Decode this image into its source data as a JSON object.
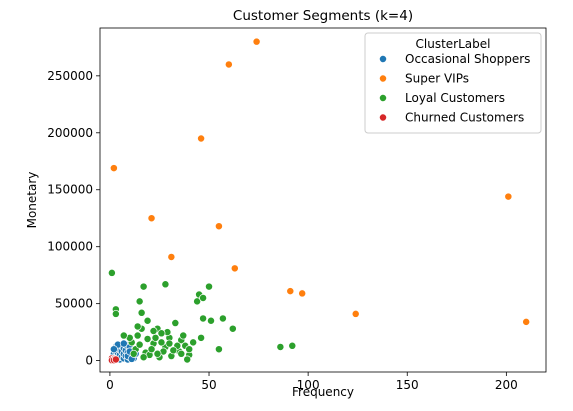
{
  "chart_data": {
    "type": "scatter",
    "title": "Customer Segments (k=4)",
    "xlabel": "Frequency",
    "ylabel": "Monetary",
    "xlim": [
      -5,
      220
    ],
    "ylim": [
      -10000,
      292000
    ],
    "xticks": [
      0,
      50,
      100,
      150,
      200
    ],
    "yticks": [
      0,
      50000,
      100000,
      150000,
      200000,
      250000
    ],
    "grid": false,
    "legend": {
      "title": "ClusterLabel",
      "placement": "top-right"
    },
    "series": [
      {
        "name": "Occasional Shoppers",
        "color": "#1f77b4",
        "points": [
          [
            1,
            1500
          ],
          [
            2,
            3000
          ],
          [
            2,
            6000
          ],
          [
            3,
            2000
          ],
          [
            3,
            8000
          ],
          [
            3,
            12000
          ],
          [
            4,
            4000
          ],
          [
            4,
            7000
          ],
          [
            5,
            1000
          ],
          [
            5,
            5000
          ],
          [
            5,
            10000
          ],
          [
            6,
            3000
          ],
          [
            6,
            8000
          ],
          [
            6,
            13000
          ],
          [
            7,
            2000
          ],
          [
            7,
            6000
          ],
          [
            7,
            11000
          ],
          [
            8,
            4000
          ],
          [
            8,
            9000
          ],
          [
            8,
            14000
          ],
          [
            9,
            1000
          ],
          [
            9,
            7000
          ],
          [
            10,
            3000
          ],
          [
            10,
            12000
          ],
          [
            11,
            5000
          ],
          [
            12,
            2000
          ],
          [
            12,
            9000
          ],
          [
            13,
            6000
          ],
          [
            4,
            14000
          ],
          [
            7,
            15000
          ],
          [
            9,
            4000
          ],
          [
            10,
            8000
          ],
          [
            11,
            1500
          ],
          [
            2,
            10000
          ]
        ]
      },
      {
        "name": "Super VIPs",
        "color": "#ff7f0e",
        "points": [
          [
            74,
            280000
          ],
          [
            60,
            260000
          ],
          [
            46,
            195000
          ],
          [
            2,
            169000
          ],
          [
            201,
            144000
          ],
          [
            21,
            125000
          ],
          [
            55,
            118000
          ],
          [
            31,
            91000
          ],
          [
            63,
            81000
          ],
          [
            91,
            61000
          ],
          [
            97,
            59000
          ],
          [
            124,
            41000
          ],
          [
            210,
            34000
          ]
        ]
      },
      {
        "name": "Loyal Customers",
        "color": "#2ca02c",
        "points": [
          [
            1,
            77000
          ],
          [
            3,
            45000
          ],
          [
            3,
            41000
          ],
          [
            15,
            52000
          ],
          [
            17,
            65000
          ],
          [
            28,
            67000
          ],
          [
            45,
            58000
          ],
          [
            50,
            65000
          ],
          [
            44,
            52000
          ],
          [
            47,
            55000
          ],
          [
            47,
            37000
          ],
          [
            51,
            35000
          ],
          [
            57,
            37000
          ],
          [
            62,
            28000
          ],
          [
            55,
            10000
          ],
          [
            86,
            12000
          ],
          [
            92,
            13000
          ],
          [
            16,
            42000
          ],
          [
            19,
            35000
          ],
          [
            24,
            28000
          ],
          [
            33,
            33000
          ],
          [
            36,
            18000
          ],
          [
            22,
            15000
          ],
          [
            28,
            12000
          ],
          [
            30,
            20000
          ],
          [
            18,
            7000
          ],
          [
            13,
            10000
          ],
          [
            20,
            5000
          ],
          [
            25,
            3000
          ],
          [
            35,
            8000
          ],
          [
            40,
            5000
          ],
          [
            42,
            16000
          ],
          [
            46,
            20000
          ],
          [
            38,
            13000
          ],
          [
            23,
            20000
          ],
          [
            27,
            8000
          ],
          [
            31,
            4000
          ],
          [
            34,
            13000
          ],
          [
            37,
            22000
          ],
          [
            39,
            1000
          ],
          [
            11,
            16000
          ],
          [
            14,
            22000
          ],
          [
            16,
            28000
          ],
          [
            19,
            19000
          ],
          [
            21,
            10000
          ],
          [
            26,
            16000
          ],
          [
            29,
            25000
          ],
          [
            32,
            9000
          ],
          [
            12,
            6000
          ],
          [
            10,
            20000
          ],
          [
            15,
            14000
          ],
          [
            17,
            3000
          ],
          [
            24,
            6000
          ],
          [
            30,
            15000
          ],
          [
            40,
            10000
          ],
          [
            22,
            26000
          ],
          [
            26,
            24000
          ],
          [
            7,
            22000
          ],
          [
            14,
            30000
          ],
          [
            36,
            6000
          ]
        ]
      },
      {
        "name": "Churned Customers",
        "color": "#d62728",
        "points": [
          [
            1,
            500
          ],
          [
            1,
            1200
          ],
          [
            1,
            2000
          ],
          [
            2,
            800
          ],
          [
            2,
            1500
          ],
          [
            1,
            300
          ],
          [
            2,
            400
          ],
          [
            3,
            1000
          ]
        ]
      }
    ]
  }
}
